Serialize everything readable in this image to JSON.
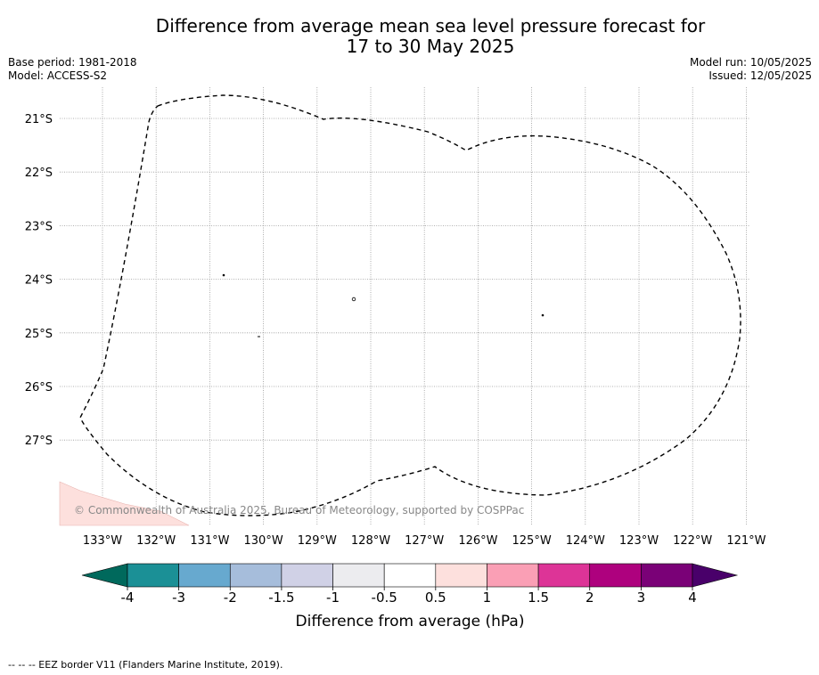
{
  "title": {
    "line1": "Difference from average mean sea level pressure forecast for",
    "line2": "17 to 30 May 2025"
  },
  "meta": {
    "base_period": "Base period: 1981-2018",
    "model": "Model: ACCESS-S2",
    "model_run": "Model run: 10/05/2025",
    "issued": "Issued: 12/05/2025"
  },
  "map": {
    "lat_labels": [
      "21°S",
      "22°S",
      "23°S",
      "24°S",
      "25°S",
      "26°S",
      "27°S"
    ],
    "lon_labels": [
      "133°W",
      "132°W",
      "131°W",
      "130°W",
      "129°W",
      "128°W",
      "127°W",
      "126°W",
      "125°W",
      "124°W",
      "123°W",
      "122°W",
      "121°W"
    ],
    "shaded_area_color": "#fde0dd",
    "copyright": "© Commonwealth of Australia 2025, Bureau of Meteorology, supported by COSPPac"
  },
  "colorbar": {
    "title": "Difference from average (hPa)",
    "ticks": [
      "-4",
      "-3",
      "-2",
      "-1.5",
      "-1",
      "-0.5",
      "0.5",
      "1",
      "1.5",
      "2",
      "3",
      "4"
    ],
    "under_color": "#00695c",
    "over_color": "#49006a",
    "colors": [
      "#1b9096",
      "#67a9cf",
      "#a6bddb",
      "#d0d1e6",
      "#ececef",
      "#ffffff",
      "#fde0dd",
      "#fa9fb5",
      "#dd3497",
      "#ae017e",
      "#7a0177"
    ]
  },
  "footnote": "--  --  -- EEZ border V11 (Flanders Marine Institute, 2019)."
}
